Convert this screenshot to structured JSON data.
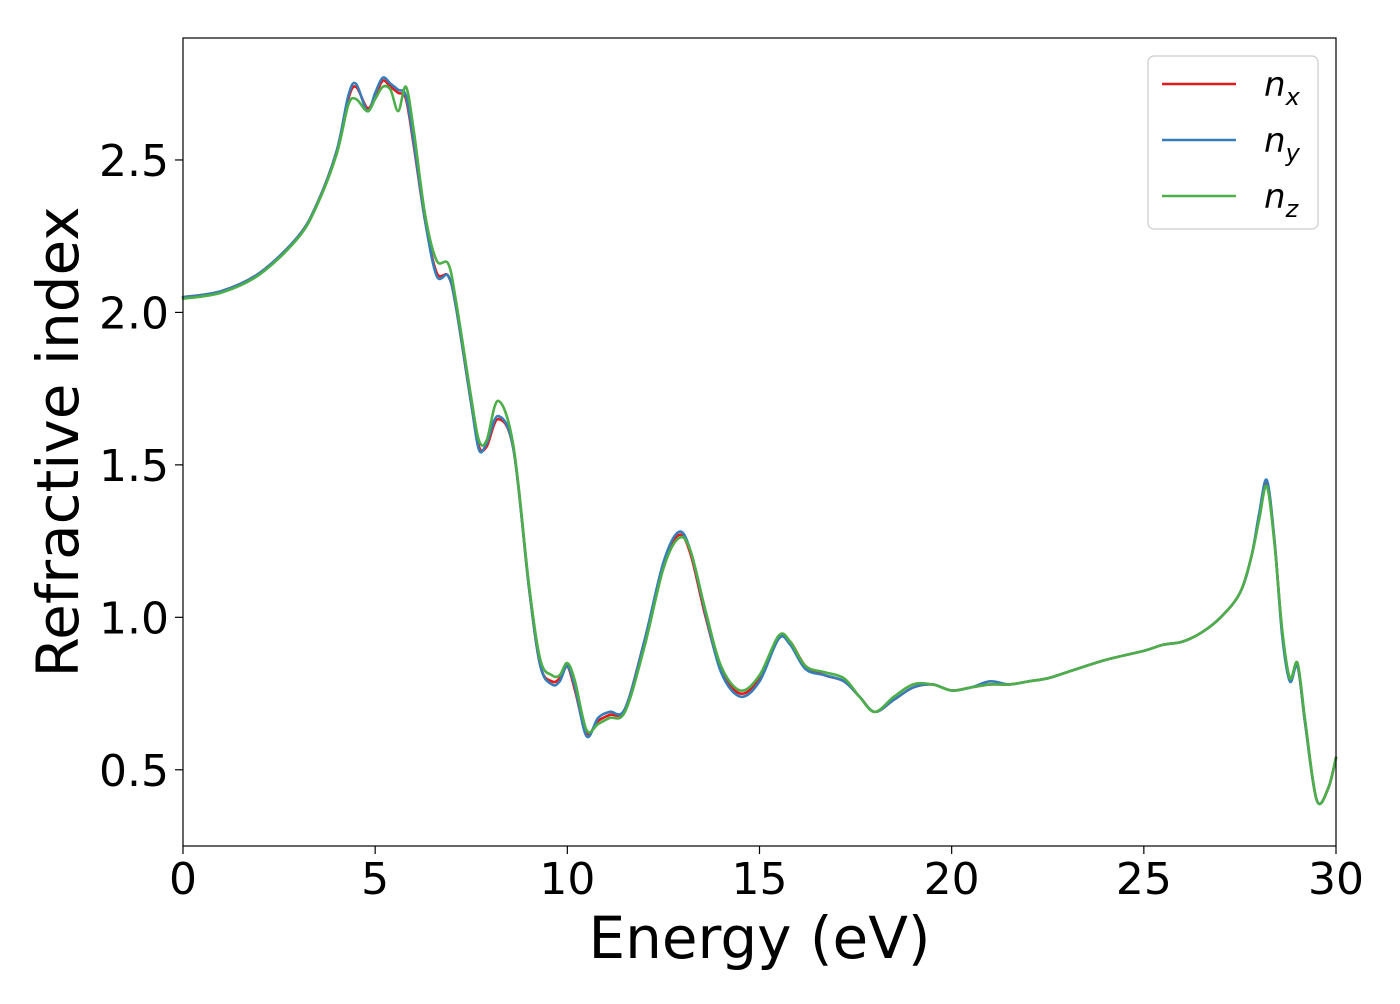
{
  "chart_data": {
    "type": "line",
    "title": "",
    "xlabel": "Energy (eV)",
    "ylabel": "Refractive index",
    "xlim": [
      0,
      30
    ],
    "ylim": [
      0.25,
      2.9
    ],
    "x_ticks": [
      0,
      5,
      10,
      15,
      20,
      25,
      30
    ],
    "y_ticks": [
      0.5,
      1.0,
      1.5,
      2.0,
      2.5
    ],
    "x_tick_labels": [
      "0",
      "5",
      "10",
      "15",
      "20",
      "25",
      "30"
    ],
    "y_tick_labels": [
      "0.5",
      "1.0",
      "1.5",
      "2.0",
      "2.5"
    ],
    "grid": false,
    "legend_position": "top-right",
    "x": [
      0,
      1,
      2,
      3,
      3.5,
      4,
      4.3,
      4.5,
      4.8,
      5.0,
      5.2,
      5.4,
      5.6,
      5.8,
      6.0,
      6.3,
      6.6,
      6.9,
      7.1,
      7.5,
      7.7,
      7.9,
      8.2,
      8.6,
      9.0,
      9.3,
      9.6,
      9.8,
      10.0,
      10.2,
      10.5,
      10.8,
      11.1,
      11.5,
      12.0,
      12.5,
      12.9,
      13.2,
      13.6,
      14.0,
      14.5,
      15.0,
      15.5,
      15.8,
      16.2,
      16.7,
      17.2,
      17.6,
      18.0,
      18.5,
      19.0,
      19.5,
      20.0,
      20.5,
      21.0,
      21.5,
      22.0,
      22.5,
      23.0,
      24.0,
      25.0,
      25.5,
      26.0,
      26.5,
      27.0,
      27.5,
      27.8,
      28.0,
      28.2,
      28.4,
      28.6,
      28.8,
      29.0,
      29.2,
      29.5,
      29.8,
      30.0
    ],
    "series": [
      {
        "name": "n_x",
        "label_main": "n",
        "label_sub": "x",
        "color": "#e41a1c",
        "values": [
          2.05,
          2.07,
          2.13,
          2.25,
          2.36,
          2.53,
          2.7,
          2.74,
          2.67,
          2.71,
          2.76,
          2.74,
          2.72,
          2.7,
          2.55,
          2.3,
          2.13,
          2.12,
          2.02,
          1.7,
          1.56,
          1.56,
          1.65,
          1.55,
          1.1,
          0.84,
          0.79,
          0.8,
          0.84,
          0.76,
          0.62,
          0.66,
          0.68,
          0.7,
          0.92,
          1.17,
          1.27,
          1.21,
          1.0,
          0.83,
          0.75,
          0.8,
          0.93,
          0.92,
          0.84,
          0.81,
          0.79,
          0.74,
          0.69,
          0.73,
          0.77,
          0.78,
          0.76,
          0.77,
          0.78,
          0.78,
          0.79,
          0.8,
          0.82,
          0.86,
          0.89,
          0.91,
          0.92,
          0.95,
          1.0,
          1.08,
          1.2,
          1.33,
          1.44,
          1.25,
          0.95,
          0.8,
          0.84,
          0.65,
          0.4,
          0.44,
          0.54
        ]
      },
      {
        "name": "n_y",
        "label_main": "n",
        "label_sub": "y",
        "color": "#377eb8",
        "values": [
          2.05,
          2.07,
          2.13,
          2.25,
          2.36,
          2.53,
          2.71,
          2.75,
          2.66,
          2.72,
          2.77,
          2.75,
          2.73,
          2.71,
          2.56,
          2.3,
          2.12,
          2.12,
          2.02,
          1.7,
          1.55,
          1.57,
          1.66,
          1.55,
          1.1,
          0.84,
          0.78,
          0.79,
          0.84,
          0.77,
          0.61,
          0.67,
          0.69,
          0.7,
          0.92,
          1.18,
          1.28,
          1.22,
          1.01,
          0.82,
          0.74,
          0.79,
          0.93,
          0.91,
          0.83,
          0.81,
          0.79,
          0.74,
          0.69,
          0.73,
          0.77,
          0.78,
          0.76,
          0.77,
          0.79,
          0.78,
          0.79,
          0.8,
          0.82,
          0.86,
          0.89,
          0.91,
          0.92,
          0.95,
          1.0,
          1.08,
          1.2,
          1.34,
          1.45,
          1.25,
          0.94,
          0.79,
          0.84,
          0.65,
          0.4,
          0.44,
          0.54
        ]
      },
      {
        "name": "n_z",
        "label_main": "n",
        "label_sub": "z",
        "color": "#4daf4a",
        "values": [
          2.045,
          2.065,
          2.125,
          2.245,
          2.355,
          2.52,
          2.68,
          2.7,
          2.66,
          2.7,
          2.74,
          2.73,
          2.66,
          2.74,
          2.6,
          2.32,
          2.17,
          2.16,
          2.04,
          1.72,
          1.58,
          1.58,
          1.71,
          1.56,
          1.11,
          0.86,
          0.81,
          0.81,
          0.85,
          0.79,
          0.63,
          0.65,
          0.67,
          0.69,
          0.9,
          1.16,
          1.26,
          1.22,
          1.02,
          0.84,
          0.76,
          0.81,
          0.94,
          0.92,
          0.84,
          0.82,
          0.8,
          0.74,
          0.69,
          0.74,
          0.78,
          0.78,
          0.76,
          0.77,
          0.78,
          0.78,
          0.79,
          0.8,
          0.82,
          0.86,
          0.89,
          0.91,
          0.92,
          0.95,
          1.0,
          1.08,
          1.2,
          1.32,
          1.43,
          1.24,
          0.96,
          0.8,
          0.85,
          0.66,
          0.4,
          0.44,
          0.54
        ]
      }
    ]
  }
}
